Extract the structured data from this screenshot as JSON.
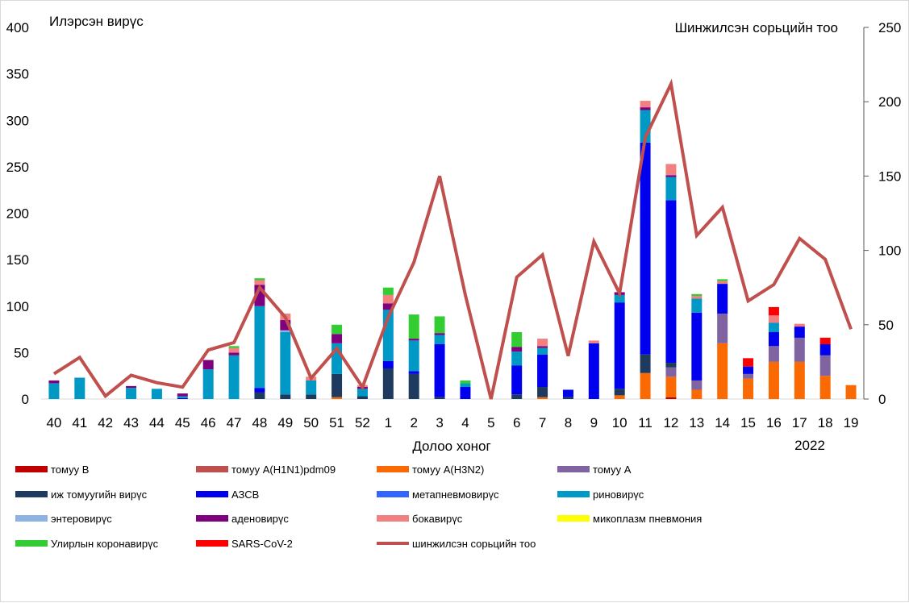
{
  "chart_data": {
    "type": "bar",
    "stacked": true,
    "y_title": "Илэрсэн вирүс",
    "y2_title": "Шинжилсэн сорьцийн тоо",
    "xlabel": "Долоо хоног",
    "year_label": "2022",
    "ylim": [
      0,
      400
    ],
    "yticks": [
      0,
      50,
      100,
      150,
      200,
      250,
      300,
      350,
      400
    ],
    "y2lim": [
      0,
      250
    ],
    "y2ticks": [
      0,
      50,
      100,
      150,
      200,
      250
    ],
    "grid": false,
    "legend_position": "bottom",
    "categories": [
      "40",
      "41",
      "42",
      "43",
      "44",
      "45",
      "46",
      "47",
      "48",
      "49",
      "50",
      "51",
      "52",
      "1",
      "2",
      "3",
      "4",
      "5",
      "6",
      "7",
      "8",
      "9",
      "10",
      "11",
      "12",
      "13",
      "14",
      "15",
      "16",
      "17",
      "18",
      "19"
    ],
    "series": [
      {
        "name": "томуу В",
        "color": "#c00000",
        "values": [
          0,
          0,
          0,
          0,
          0,
          0,
          0,
          0,
          0,
          0,
          0,
          0,
          0,
          0,
          0,
          0,
          0,
          0,
          0,
          0,
          0,
          0,
          0,
          0,
          2,
          0,
          0,
          0,
          0,
          0,
          0,
          0
        ]
      },
      {
        "name": "томуу А(H1N1)pdm09",
        "color": "#c0504d",
        "values": [
          0,
          0,
          0,
          0,
          0,
          0,
          0,
          0,
          0,
          0,
          0,
          0,
          0,
          0,
          0,
          0,
          0,
          0,
          0,
          0,
          0,
          0,
          0,
          0,
          0,
          0,
          0,
          0,
          0,
          0,
          0,
          0
        ]
      },
      {
        "name": "томуу А(H3N2)",
        "color": "#fb6a02",
        "values": [
          0,
          0,
          0,
          0,
          0,
          0,
          0,
          0,
          0,
          0,
          0,
          2,
          0,
          0,
          0,
          0,
          0,
          0,
          0,
          2,
          0,
          0,
          4,
          28,
          22,
          10,
          60,
          22,
          40,
          40,
          25,
          15
        ]
      },
      {
        "name": "томуу А",
        "color": "#8064a2",
        "values": [
          0,
          0,
          0,
          0,
          0,
          0,
          0,
          0,
          0,
          0,
          0,
          0,
          0,
          0,
          0,
          0,
          0,
          0,
          0,
          0,
          0,
          0,
          0,
          0,
          10,
          10,
          32,
          5,
          17,
          26,
          22,
          0
        ]
      },
      {
        "name": "иж томуугийн вирүс",
        "color": "#1f3a5f",
        "values": [
          0,
          0,
          0,
          0,
          0,
          0,
          0,
          0,
          7,
          5,
          5,
          25,
          3,
          33,
          27,
          2,
          0,
          0,
          5,
          11,
          2,
          0,
          7,
          20,
          5,
          0,
          0,
          0,
          0,
          0,
          0,
          0
        ]
      },
      {
        "name": "АЗСВ",
        "color": "#0000ee",
        "values": [
          0,
          0,
          0,
          0,
          0,
          1,
          0,
          0,
          5,
          0,
          0,
          0,
          0,
          8,
          3,
          57,
          13,
          0,
          31,
          35,
          8,
          60,
          93,
          228,
          175,
          73,
          32,
          8,
          15,
          12,
          12,
          0
        ]
      },
      {
        "name": "метапневмовирүс",
        "color": "#3366ff",
        "values": [
          0,
          0,
          0,
          0,
          0,
          0,
          0,
          0,
          0,
          0,
          0,
          0,
          0,
          0,
          0,
          0,
          0,
          0,
          0,
          0,
          0,
          0,
          0,
          0,
          0,
          0,
          0,
          0,
          0,
          0,
          0,
          0
        ]
      },
      {
        "name": "риновирүс",
        "color": "#0099c6",
        "values": [
          17,
          23,
          0,
          12,
          11,
          2,
          32,
          47,
          88,
          67,
          15,
          33,
          8,
          55,
          33,
          10,
          4,
          0,
          15,
          7,
          0,
          0,
          8,
          35,
          25,
          15,
          0,
          0,
          10,
          0,
          0,
          0
        ]
      },
      {
        "name": "энтеровирүс",
        "color": "#8db3e2",
        "values": [
          0,
          0,
          0,
          0,
          0,
          0,
          0,
          0,
          0,
          2,
          0,
          0,
          0,
          0,
          0,
          0,
          0,
          0,
          0,
          0,
          0,
          0,
          0,
          0,
          0,
          0,
          0,
          0,
          0,
          0,
          0,
          0
        ]
      },
      {
        "name": "аденовирүс",
        "color": "#7f007f",
        "values": [
          3,
          0,
          0,
          2,
          0,
          3,
          10,
          3,
          23,
          11,
          0,
          10,
          2,
          7,
          2,
          2,
          0,
          0,
          5,
          2,
          0,
          0,
          3,
          3,
          2,
          0,
          0,
          0,
          0,
          0,
          0,
          0
        ]
      },
      {
        "name": "бокавирүс",
        "color": "#f28080",
        "values": [
          0,
          0,
          0,
          0,
          0,
          0,
          0,
          5,
          5,
          7,
          4,
          0,
          2,
          9,
          0,
          0,
          0,
          0,
          0,
          8,
          0,
          3,
          0,
          7,
          12,
          3,
          3,
          0,
          8,
          3,
          0,
          0
        ]
      },
      {
        "name": "микоплазм пневмония",
        "color": "#ffff00",
        "values": [
          0,
          0,
          0,
          0,
          0,
          0,
          0,
          0,
          0,
          0,
          0,
          0,
          0,
          0,
          0,
          0,
          0,
          0,
          0,
          0,
          0,
          0,
          0,
          0,
          0,
          0,
          0,
          0,
          0,
          0,
          0,
          0
        ]
      },
      {
        "name": "Улирлын коронавирүс",
        "color": "#33cc33",
        "values": [
          0,
          0,
          0,
          0,
          0,
          0,
          0,
          2,
          2,
          0,
          0,
          10,
          0,
          8,
          26,
          18,
          3,
          0,
          16,
          0,
          0,
          0,
          0,
          0,
          0,
          2,
          2,
          0,
          0,
          0,
          0,
          0
        ]
      },
      {
        "name": "SARS-CoV-2",
        "color": "#ff0000",
        "values": [
          0,
          0,
          0,
          0,
          0,
          0,
          0,
          0,
          0,
          0,
          0,
          0,
          0,
          0,
          0,
          0,
          0,
          0,
          0,
          0,
          0,
          0,
          0,
          0,
          0,
          0,
          0,
          9,
          9,
          0,
          7,
          0
        ]
      }
    ],
    "line": {
      "name": "шинжилсэн сорьцийн тоо",
      "color": "#c0504d",
      "axis": "right",
      "values": [
        17,
        28,
        2,
        16,
        11,
        8,
        33,
        38,
        75,
        55,
        14,
        34,
        8,
        55,
        92,
        150,
        70,
        0,
        82,
        97,
        29,
        106,
        71,
        176,
        212,
        110,
        129,
        66,
        77,
        108,
        94,
        47
      ]
    }
  }
}
